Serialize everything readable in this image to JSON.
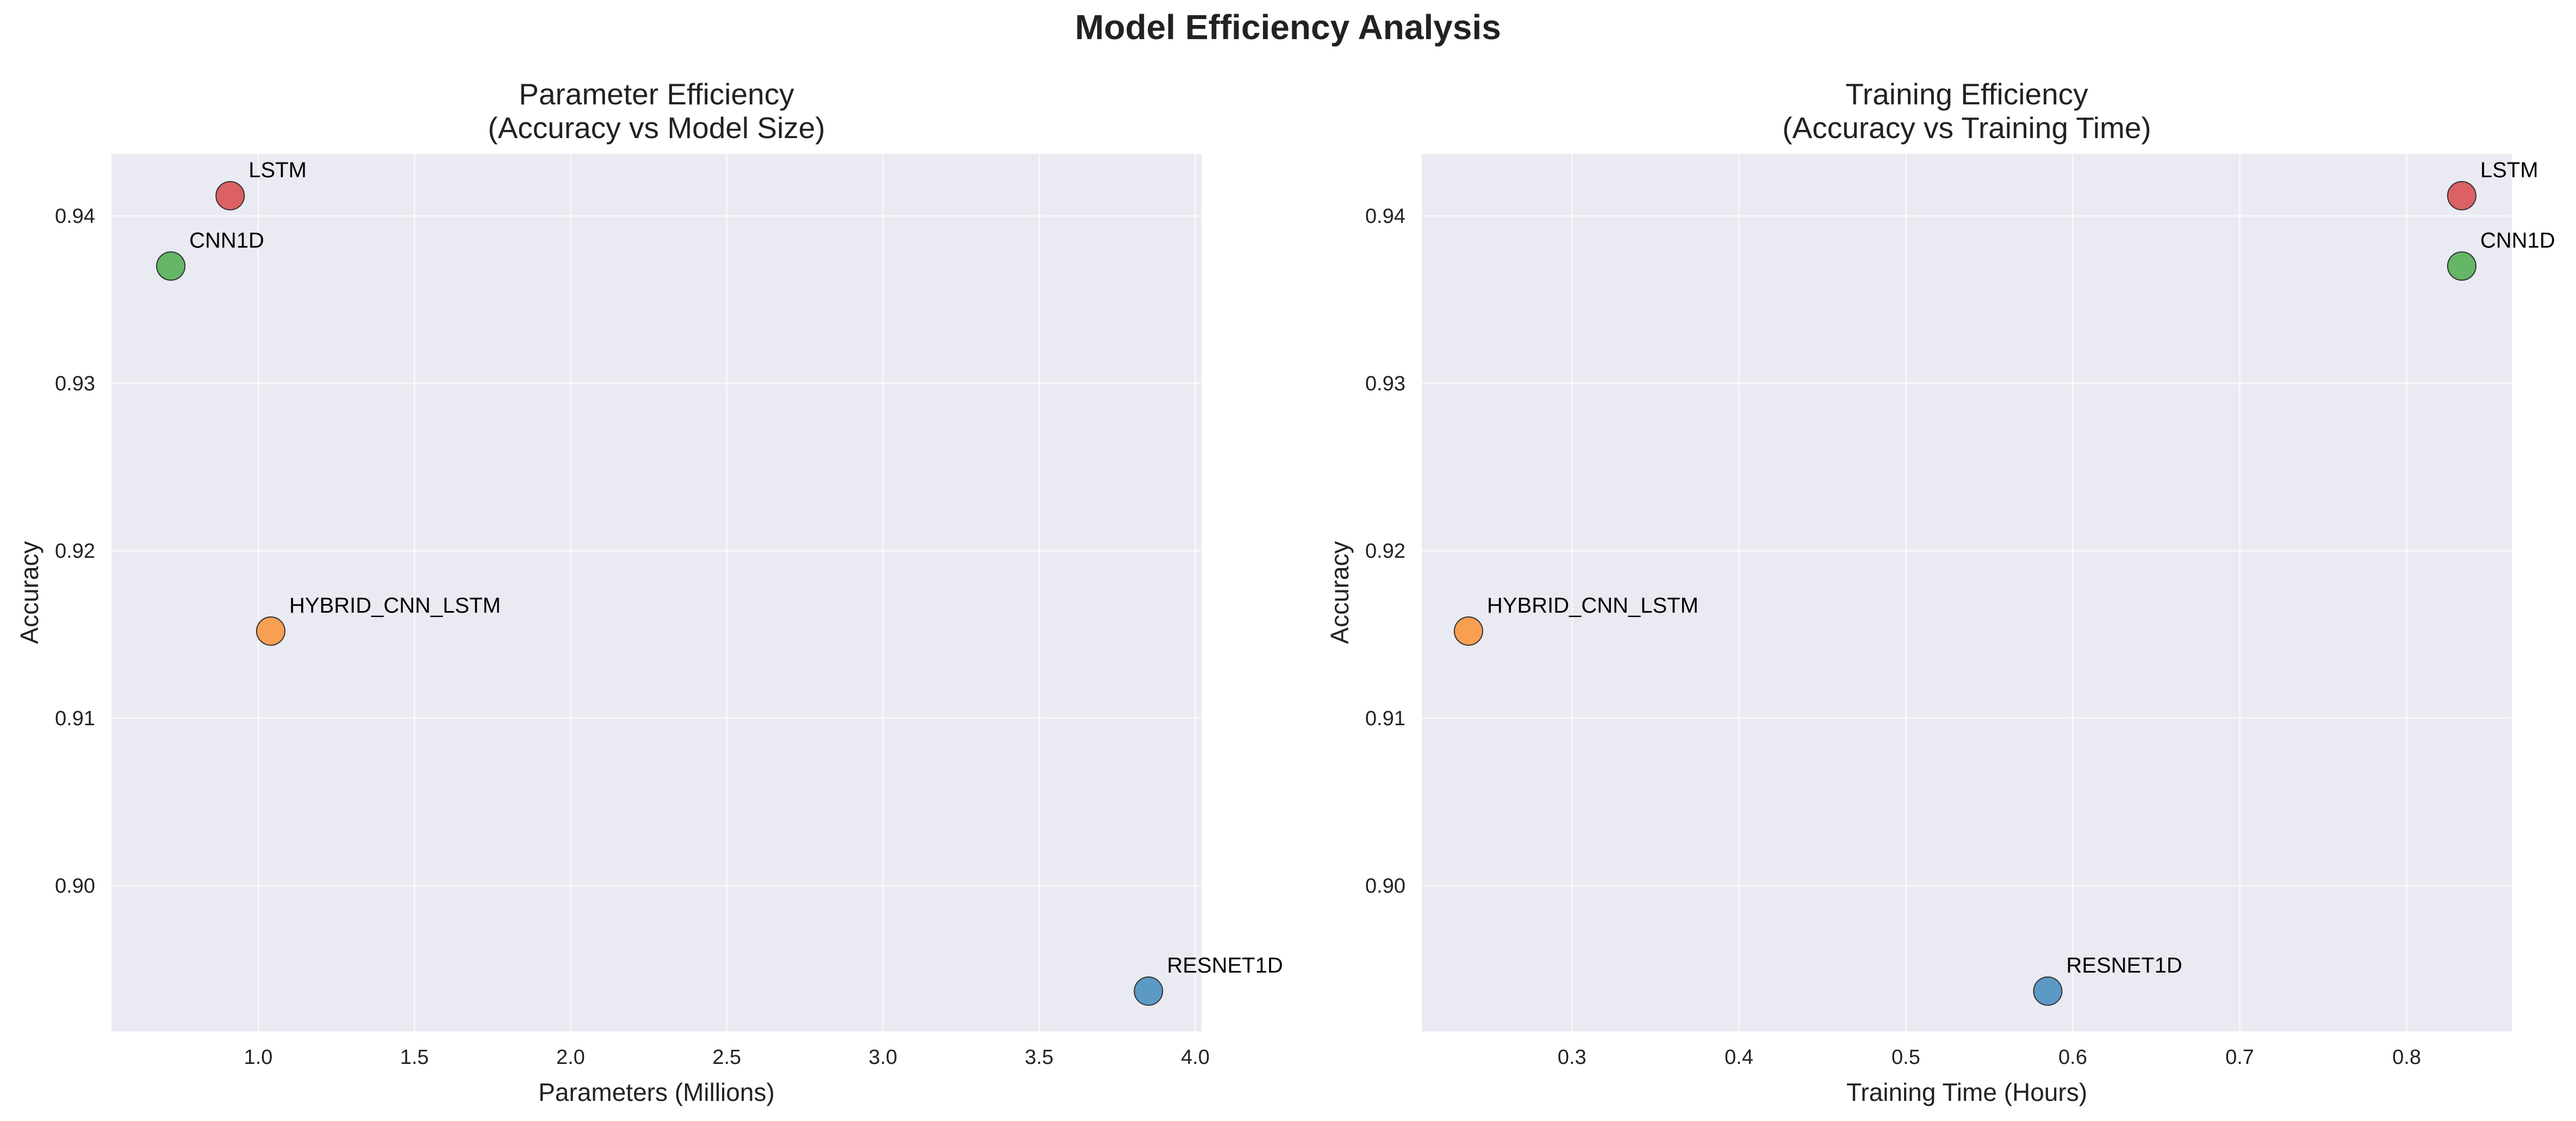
{
  "figure": {
    "title": "Model Efficiency Analysis"
  },
  "chart_data": [
    {
      "type": "scatter",
      "title": "Parameter Efficiency\n(Accuracy vs Model Size)",
      "xlabel": "Parameters (Millions)",
      "ylabel": "Accuracy",
      "xlim": [
        0.53,
        4.02
      ],
      "ylim": [
        0.8913,
        0.9437
      ],
      "xticks": [
        1.0,
        1.5,
        2.0,
        2.5,
        3.0,
        3.5,
        4.0
      ],
      "xtick_labels": [
        "1.0",
        "1.5",
        "2.0",
        "2.5",
        "3.0",
        "3.5",
        "4.0"
      ],
      "yticks": [
        0.9,
        0.91,
        0.92,
        0.93,
        0.94
      ],
      "ytick_labels": [
        "0.90",
        "0.91",
        "0.92",
        "0.93",
        "0.94"
      ],
      "grid": true,
      "background": "#eaeaf2",
      "points": [
        {
          "label": "LSTM",
          "x": 0.91,
          "y": 0.9412,
          "color": "#d62728"
        },
        {
          "label": "CNN1D",
          "x": 0.72,
          "y": 0.937,
          "color": "#2ca02c"
        },
        {
          "label": "HYBRID_CNN_LSTM",
          "x": 1.04,
          "y": 0.9152,
          "color": "#ff7f0e"
        },
        {
          "label": "RESNET1D",
          "x": 3.85,
          "y": 0.8937,
          "color": "#1f77b4"
        }
      ]
    },
    {
      "type": "scatter",
      "title": "Training Efficiency\n(Accuracy vs Training Time)",
      "xlabel": "Training Time (Hours)",
      "ylabel": "Accuracy",
      "xlim": [
        0.21,
        0.863
      ],
      "ylim": [
        0.8913,
        0.9437
      ],
      "xticks": [
        0.3,
        0.4,
        0.5,
        0.6,
        0.7,
        0.8
      ],
      "xtick_labels": [
        "0.3",
        "0.4",
        "0.5",
        "0.6",
        "0.7",
        "0.8"
      ],
      "yticks": [
        0.9,
        0.91,
        0.92,
        0.93,
        0.94
      ],
      "ytick_labels": [
        "0.90",
        "0.91",
        "0.92",
        "0.93",
        "0.94"
      ],
      "grid": true,
      "background": "#eaeaf2",
      "points": [
        {
          "label": "LSTM",
          "x": 0.833,
          "y": 0.9412,
          "color": "#d62728"
        },
        {
          "label": "CNN1D",
          "x": 0.833,
          "y": 0.937,
          "color": "#2ca02c"
        },
        {
          "label": "HYBRID_CNN_LSTM",
          "x": 0.238,
          "y": 0.9152,
          "color": "#ff7f0e"
        },
        {
          "label": "RESNET1D",
          "x": 0.585,
          "y": 0.8937,
          "color": "#1f77b4"
        }
      ]
    }
  ]
}
